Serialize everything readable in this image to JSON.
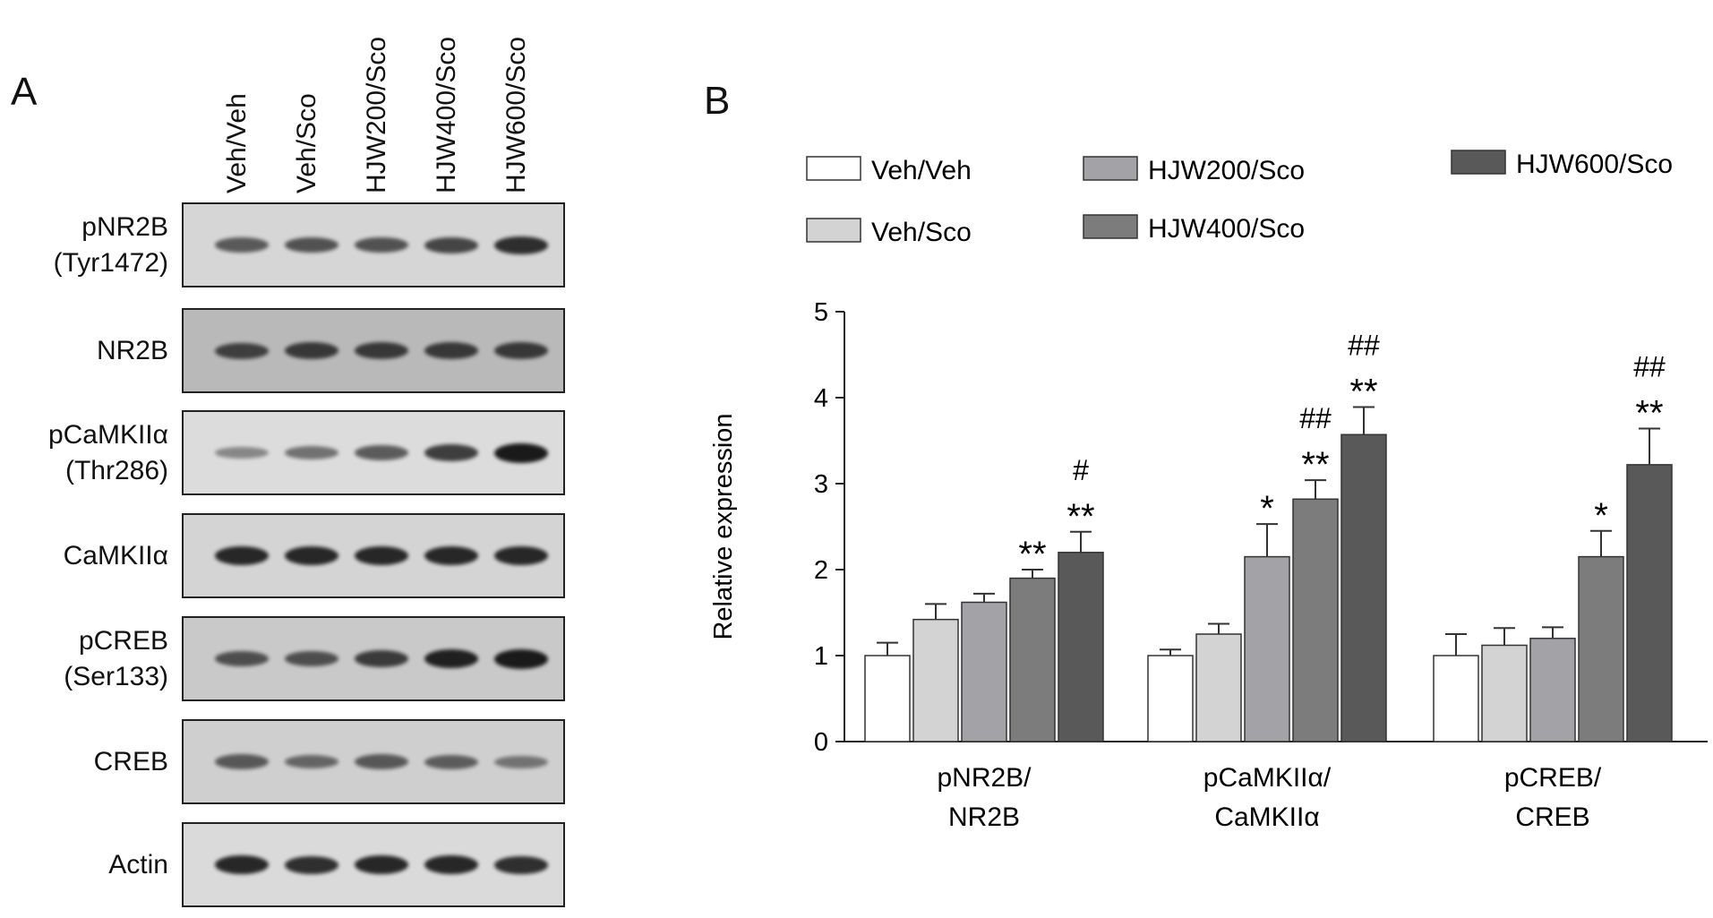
{
  "panel_a": {
    "letter": "A",
    "lanes": [
      "Veh/Veh",
      "Veh/Sco",
      "HJW200/Sco",
      "HJW400/Sco",
      "HJW600/Sco"
    ],
    "blots": [
      {
        "name": "pnr2b",
        "label_line1": "pNR2B",
        "label_line2": "(Tyr1472)",
        "intensity": [
          0.55,
          0.6,
          0.6,
          0.7,
          0.85
        ],
        "bg": "#d6d6d6"
      },
      {
        "name": "nr2b",
        "label_line1": "NR2B",
        "label_line2": "",
        "intensity": [
          0.7,
          0.75,
          0.75,
          0.75,
          0.75
        ],
        "bg": "#b9b9b9"
      },
      {
        "name": "pcamkii",
        "label_line1": "pCaMKIIα",
        "label_line2": "(Thr286)",
        "intensity": [
          0.25,
          0.4,
          0.55,
          0.75,
          1.0
        ],
        "bg": "#dcdcdc"
      },
      {
        "name": "camkii",
        "label_line1": "CaMKIIα",
        "label_line2": "",
        "intensity": [
          0.9,
          0.9,
          0.9,
          0.9,
          0.9
        ],
        "bg": "#d4d4d4"
      },
      {
        "name": "pcreb",
        "label_line1": "pCREB",
        "label_line2": "(Ser133)",
        "intensity": [
          0.6,
          0.6,
          0.75,
          0.95,
          1.0
        ],
        "bg": "#c9c9c9"
      },
      {
        "name": "creb",
        "label_line1": "CREB",
        "label_line2": "",
        "intensity": [
          0.55,
          0.45,
          0.55,
          0.5,
          0.35
        ],
        "bg": "#cfcfcf"
      },
      {
        "name": "actin",
        "label_line1": "Actin",
        "label_line2": "",
        "intensity": [
          0.9,
          0.85,
          0.9,
          0.9,
          0.85
        ],
        "bg": "#dadada"
      }
    ]
  },
  "panel_b": {
    "letter": "B"
  },
  "chart_data": {
    "type": "bar",
    "ylabel": "Relative expression",
    "ylim": [
      0,
      5
    ],
    "yticks": [
      "0",
      "1",
      "2",
      "3",
      "4",
      "5"
    ],
    "categories": [
      {
        "line1": "pNR2B/",
        "line2": "NR2B"
      },
      {
        "line1": "pCaMKIIα/",
        "line2": "CaMKIIα"
      },
      {
        "line1": "pCREB/",
        "line2": "CREB"
      }
    ],
    "series": [
      {
        "name": "Veh/Veh",
        "color": "#ffffff",
        "values": [
          1.0,
          1.0,
          1.0
        ],
        "errors": [
          0.15,
          0.07,
          0.25
        ]
      },
      {
        "name": "Veh/Sco",
        "color": "#d3d3d3",
        "values": [
          1.42,
          1.25,
          1.12
        ],
        "errors": [
          0.18,
          0.12,
          0.2
        ]
      },
      {
        "name": "HJW200/Sco",
        "color": "#a3a3a7",
        "values": [
          1.62,
          2.15,
          1.2
        ],
        "errors": [
          0.1,
          0.38,
          0.13
        ]
      },
      {
        "name": "HJW400/Sco",
        "color": "#7c7c7c",
        "values": [
          1.9,
          2.82,
          2.15
        ],
        "errors": [
          0.1,
          0.22,
          0.3
        ]
      },
      {
        "name": "HJW600/Sco",
        "color": "#595959",
        "values": [
          2.2,
          3.57,
          3.22
        ],
        "errors": [
          0.24,
          0.32,
          0.42
        ]
      }
    ],
    "significance": [
      {
        "category": 0,
        "series": 3,
        "marks": [
          "**"
        ]
      },
      {
        "category": 0,
        "series": 4,
        "marks": [
          "#",
          "**"
        ]
      },
      {
        "category": 1,
        "series": 2,
        "marks": [
          "*"
        ]
      },
      {
        "category": 1,
        "series": 3,
        "marks": [
          "##",
          "**"
        ]
      },
      {
        "category": 1,
        "series": 4,
        "marks": [
          "##",
          "**"
        ]
      },
      {
        "category": 2,
        "series": 3,
        "marks": [
          "*"
        ]
      },
      {
        "category": 2,
        "series": 4,
        "marks": [
          "##",
          "**"
        ]
      }
    ],
    "legend": {
      "placement": "top",
      "order": [
        [
          0,
          2,
          4
        ],
        [
          1,
          3
        ]
      ]
    }
  }
}
